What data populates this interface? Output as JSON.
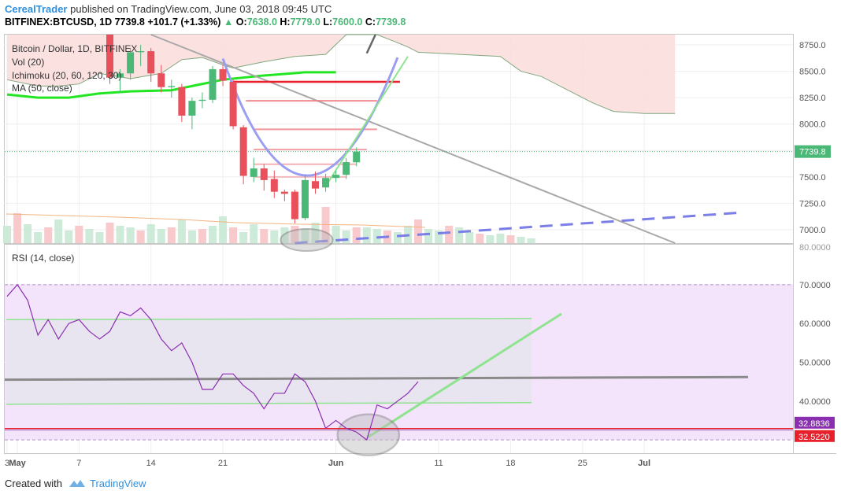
{
  "header": {
    "author": "CerealTrader",
    "published_text": "published on TradingView.com, June 03, 2018 09:45 UTC",
    "symbol": "BITFINEX:BTCUSD, 1D",
    "last": "7739.8",
    "arrow": "▲",
    "change": "+101.7 (+1.33%)",
    "open_label": "O:",
    "open": "7638.0",
    "high_label": "H:",
    "high": "7779.0",
    "low_label": "L:",
    "low": "7600.0",
    "close_label": "C:",
    "close": "7739.8"
  },
  "legend": {
    "title": "Bitcoin / Dollar, 1D, BITFINEX",
    "vol": "Vol (20)",
    "ichimoku": "Ichimoku (20, 60, 120, 30)",
    "ma": "MA (50, close)"
  },
  "rsi_legend": "RSI (14, close)",
  "footer": {
    "created_with": "Created with",
    "brand": "TradingView"
  },
  "colors": {
    "up": "#4bb877",
    "down": "#e8505b",
    "cloud": "#fcdcdc",
    "ma": "#22e622",
    "rsi": "#8a2fb0",
    "rsi_band": "#f3e4fb",
    "trend_gray": "#a8a8a8",
    "dash_blue": "#7b7ee6",
    "curve": "#9a9ef0",
    "green_trend": "#8ee48e",
    "price_label": "#4bb877",
    "red_line": "#e8202c"
  },
  "chart_data": [
    {
      "type": "candlestick",
      "title": "Bitcoin / Dollar, 1D, BITFINEX",
      "ylim": [
        6860,
        8850
      ],
      "yticks": [
        7000,
        7250,
        7500,
        7750,
        8000,
        8250,
        8500,
        8750
      ],
      "ytick_labels": [
        "7000.0",
        "7250.0",
        "7500.0",
        "7750.0",
        "8000.0",
        "8250.0",
        "8500.0",
        "8750.0"
      ],
      "last_price": 7739.8,
      "last_price_label": "7739.8",
      "xticks": [
        {
          "date": "2018-04-30",
          "label": "3"
        },
        {
          "date": "2018-05-01",
          "label": "May"
        },
        {
          "date": "2018-05-07",
          "label": "7"
        },
        {
          "date": "2018-05-14",
          "label": "14"
        },
        {
          "date": "2018-05-21",
          "label": "21"
        },
        {
          "date": "2018-06-01",
          "label": "Jun"
        },
        {
          "date": "2018-06-11",
          "label": "11"
        },
        {
          "date": "2018-06-18",
          "label": "18"
        },
        {
          "date": "2018-06-25",
          "label": "25"
        },
        {
          "date": "2018-07-01",
          "label": "Jul"
        }
      ],
      "candles": [
        {
          "date": "2018-05-10",
          "o": 9300,
          "h": 9350,
          "c": 8440,
          "l": 8380
        },
        {
          "date": "2018-05-11",
          "o": 8440,
          "h": 8520,
          "c": 8480,
          "l": 8300
        },
        {
          "date": "2018-05-12",
          "o": 8480,
          "h": 8720,
          "c": 8680,
          "l": 8420
        },
        {
          "date": "2018-05-13",
          "o": 8680,
          "h": 8750,
          "c": 8690,
          "l": 8550
        },
        {
          "date": "2018-05-14",
          "o": 8690,
          "h": 8720,
          "c": 8480,
          "l": 8400
        },
        {
          "date": "2018-05-15",
          "o": 8480,
          "h": 8560,
          "c": 8350,
          "l": 8300
        },
        {
          "date": "2018-05-16",
          "o": 8350,
          "h": 8420,
          "c": 8360,
          "l": 8250
        },
        {
          "date": "2018-05-17",
          "o": 8350,
          "h": 8380,
          "c": 8080,
          "l": 8020
        },
        {
          "date": "2018-05-18",
          "o": 8080,
          "h": 8250,
          "c": 8220,
          "l": 7950
        },
        {
          "date": "2018-05-19",
          "o": 8220,
          "h": 8300,
          "c": 8230,
          "l": 8150
        },
        {
          "date": "2018-05-20",
          "o": 8230,
          "h": 8550,
          "c": 8520,
          "l": 8200
        },
        {
          "date": "2018-05-21",
          "o": 8520,
          "h": 8560,
          "c": 8410,
          "l": 8360
        },
        {
          "date": "2018-05-22",
          "o": 8400,
          "h": 8420,
          "c": 7980,
          "l": 7950
        },
        {
          "date": "2018-05-23",
          "o": 7970,
          "h": 7990,
          "c": 7510,
          "l": 7430
        },
        {
          "date": "2018-05-24",
          "o": 7500,
          "h": 7680,
          "c": 7580,
          "l": 7450
        },
        {
          "date": "2018-05-25",
          "o": 7580,
          "h": 7620,
          "c": 7470,
          "l": 7370
        },
        {
          "date": "2018-05-26",
          "o": 7480,
          "h": 7560,
          "c": 7360,
          "l": 7300
        },
        {
          "date": "2018-05-27",
          "o": 7360,
          "h": 7380,
          "c": 7340,
          "l": 7270
        },
        {
          "date": "2018-05-28",
          "o": 7360,
          "h": 7380,
          "c": 7100,
          "l": 7060
        },
        {
          "date": "2018-05-29",
          "o": 7110,
          "h": 7520,
          "c": 7470,
          "l": 7090
        },
        {
          "date": "2018-05-30",
          "o": 7460,
          "h": 7550,
          "c": 7390,
          "l": 7340
        },
        {
          "date": "2018-05-31",
          "o": 7400,
          "h": 7530,
          "c": 7490,
          "l": 7360
        },
        {
          "date": "2018-06-01",
          "o": 7490,
          "h": 7560,
          "c": 7520,
          "l": 7450
        },
        {
          "date": "2018-06-02",
          "o": 7520,
          "h": 7680,
          "c": 7640,
          "l": 7480
        },
        {
          "date": "2018-06-03",
          "o": 7638,
          "h": 7779,
          "c": 7739.8,
          "l": 7600
        }
      ],
      "ma50": [
        {
          "date": "2018-04-30",
          "v": 8280
        },
        {
          "date": "2018-05-03",
          "v": 8250
        },
        {
          "date": "2018-05-06",
          "v": 8250
        },
        {
          "date": "2018-05-09",
          "v": 8290
        },
        {
          "date": "2018-05-12",
          "v": 8310
        },
        {
          "date": "2018-05-16",
          "v": 8320
        },
        {
          "date": "2018-05-21",
          "v": 8420
        },
        {
          "date": "2018-05-25",
          "v": 8460
        },
        {
          "date": "2018-05-29",
          "v": 8490
        },
        {
          "date": "2018-06-01",
          "v": 8490
        }
      ],
      "ichimoku_cloud_lower": [
        {
          "date": "2018-04-30",
          "v": 8420
        },
        {
          "date": "2018-05-03",
          "v": 8360
        },
        {
          "date": "2018-05-05",
          "v": 8360
        },
        {
          "date": "2018-05-07",
          "v": 8380
        },
        {
          "date": "2018-05-09",
          "v": 8480
        },
        {
          "date": "2018-05-12",
          "v": 8430
        },
        {
          "date": "2018-05-15",
          "v": 8480
        },
        {
          "date": "2018-05-17",
          "v": 8610
        },
        {
          "date": "2018-05-19",
          "v": 8630
        },
        {
          "date": "2018-05-21",
          "v": 8560
        },
        {
          "date": "2018-05-22",
          "v": 8530
        },
        {
          "date": "2018-05-25",
          "v": 8590
        },
        {
          "date": "2018-05-28",
          "v": 8640
        },
        {
          "date": "2018-05-31",
          "v": 8660
        },
        {
          "date": "2018-06-02",
          "v": 8860
        },
        {
          "date": "2018-06-05",
          "v": 8860
        },
        {
          "date": "2018-06-07",
          "v": 8770
        },
        {
          "date": "2018-06-08",
          "v": 8730
        },
        {
          "date": "2018-06-09",
          "v": 8680
        },
        {
          "date": "2018-06-13",
          "v": 8660
        },
        {
          "date": "2018-06-17",
          "v": 8640
        },
        {
          "date": "2018-06-19",
          "v": 8500
        },
        {
          "date": "2018-06-21",
          "v": 8450
        },
        {
          "date": "2018-06-24",
          "v": 8300
        },
        {
          "date": "2018-06-26",
          "v": 8200
        },
        {
          "date": "2018-06-28",
          "v": 8120
        },
        {
          "date": "2018-07-01",
          "v": 8100
        },
        {
          "date": "2018-07-04",
          "v": 8100
        }
      ],
      "volume_axis_label": "80.0000"
    },
    {
      "type": "line",
      "title": "RSI (14, close)",
      "ylim": [
        25.5,
        76
      ],
      "yticks": [
        40,
        50,
        60,
        70
      ],
      "ytick_labels": [
        "40.0000",
        "50.0000",
        "60.0000",
        "70.0000"
      ],
      "band": [
        30,
        70
      ],
      "last_value_label": "32.8836",
      "level_label": "32.5220",
      "series": [
        {
          "values": [
            {
              "date": "2018-04-30",
              "v": 67
            },
            {
              "date": "2018-05-01",
              "v": 70
            },
            {
              "date": "2018-05-02",
              "v": 66
            },
            {
              "date": "2018-05-03",
              "v": 57
            },
            {
              "date": "2018-05-04",
              "v": 61
            },
            {
              "date": "2018-05-05",
              "v": 56
            },
            {
              "date": "2018-05-06",
              "v": 60
            },
            {
              "date": "2018-05-07",
              "v": 61
            },
            {
              "date": "2018-05-08",
              "v": 58
            },
            {
              "date": "2018-05-09",
              "v": 56
            },
            {
              "date": "2018-05-10",
              "v": 58
            },
            {
              "date": "2018-05-11",
              "v": 63
            },
            {
              "date": "2018-05-12",
              "v": 62
            },
            {
              "date": "2018-05-13",
              "v": 64
            },
            {
              "date": "2018-05-14",
              "v": 61
            },
            {
              "date": "2018-05-15",
              "v": 56
            },
            {
              "date": "2018-05-16",
              "v": 53
            },
            {
              "date": "2018-05-17",
              "v": 55
            },
            {
              "date": "2018-05-18",
              "v": 50
            },
            {
              "date": "2018-05-19",
              "v": 43
            },
            {
              "date": "2018-05-20",
              "v": 43
            },
            {
              "date": "2018-05-21",
              "v": 47
            },
            {
              "date": "2018-05-22",
              "v": 47
            },
            {
              "date": "2018-05-23",
              "v": 44
            },
            {
              "date": "2018-05-24",
              "v": 42
            },
            {
              "date": "2018-05-25",
              "v": 38
            },
            {
              "date": "2018-05-26",
              "v": 42
            },
            {
              "date": "2018-05-27",
              "v": 42
            },
            {
              "date": "2018-05-28",
              "v": 47
            },
            {
              "date": "2018-05-29",
              "v": 45
            },
            {
              "date": "2018-05-30",
              "v": 40
            },
            {
              "date": "2018-05-31",
              "v": 33
            },
            {
              "date": "2018-06-01",
              "v": 35
            },
            {
              "date": "2018-06-02",
              "v": 33
            },
            {
              "date": "2018-06-03",
              "v": 32
            },
            {
              "date": "2018-06-04",
              "v": 30
            },
            {
              "date": "2018-06-05",
              "v": 39
            },
            {
              "date": "2018-06-06",
              "v": 38
            },
            {
              "date": "2018-06-07",
              "v": 40
            },
            {
              "date": "2018-06-08",
              "v": 42
            },
            {
              "date": "2018-06-09",
              "v": 45
            }
          ]
        }
      ]
    }
  ]
}
